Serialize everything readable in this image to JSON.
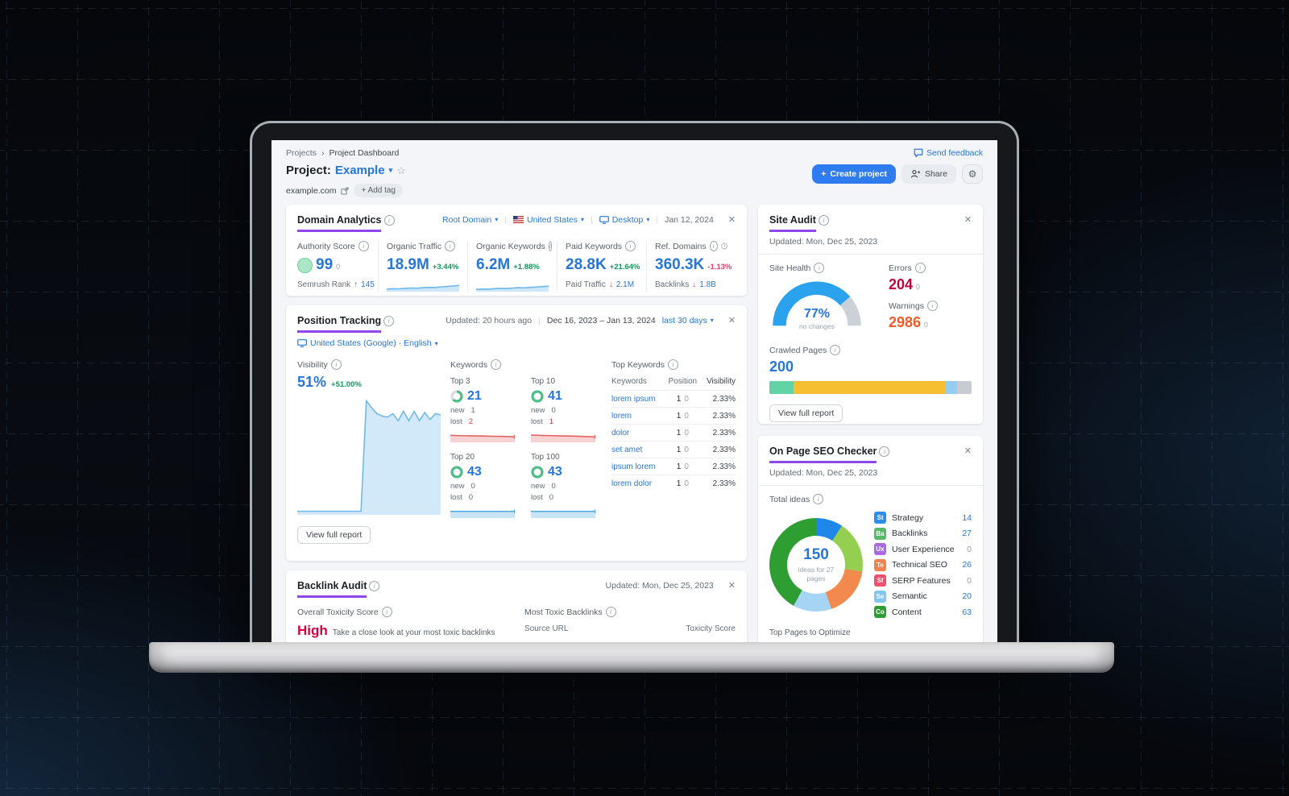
{
  "icons": {
    "plus": "+",
    "chevron_down": "▾",
    "star": "☆",
    "close": "✕",
    "gear": "⚙",
    "external": "↗",
    "breadcrumb_sep": "›",
    "vbar": "|",
    "dot_sep": "·"
  },
  "header": {
    "breadcrumb": [
      "Projects",
      "Project Dashboard"
    ],
    "title_prefix": "Project:",
    "title_value": "Example",
    "domain_link": "example.com",
    "add_tag_label": "+ Add tag",
    "send_feedback": "Send feedback",
    "create_project": "Create project",
    "share": "Share"
  },
  "domain_analytics": {
    "title": "Domain Analytics",
    "scope": "Root Domain",
    "country": "United States",
    "device": "Desktop",
    "date": "Jan 12, 2024",
    "metrics": [
      {
        "label": "Authority Score",
        "value": "99",
        "sub": "0",
        "footer_label": "Semrush Rank",
        "footer_arrow": "↑",
        "footer_arrow_color": "#13985b",
        "footer_value": "145"
      },
      {
        "label": "Organic Traffic",
        "value": "18.9M",
        "delta": "+3.44%",
        "delta_color": "#13985b",
        "spark": {
          "points": [
            22,
            26,
            25,
            29,
            32,
            31,
            35,
            38,
            37,
            42,
            46,
            50,
            55
          ],
          "line": "#6fb6e9",
          "fill": "#cde7f9"
        }
      },
      {
        "label": "Organic Keywords",
        "value": "6.2M",
        "delta": "+1.88%",
        "delta_color": "#13985b",
        "spark": {
          "points": [
            20,
            23,
            22,
            26,
            29,
            28,
            32,
            35,
            34,
            38,
            41,
            45,
            49
          ],
          "line": "#6fb6e9",
          "fill": "#cde7f9"
        }
      },
      {
        "label": "Paid Keywords",
        "value": "28.8K",
        "delta": "+21.64%",
        "delta_color": "#13985b",
        "footer_label": "Paid Traffic",
        "footer_arrow": "↓",
        "footer_arrow_color": "#e0426b",
        "footer_value": "2.1M"
      },
      {
        "label": "Ref. Domains",
        "value": "360.3K",
        "delta": "-1.13%",
        "delta_color": "#e0426b",
        "footer_label": "Backlinks",
        "footer_arrow": "↓",
        "footer_arrow_color": "#e0426b",
        "footer_value": "1.8B"
      }
    ]
  },
  "position_tracking": {
    "title": "Position Tracking",
    "updated": "Updated: 20 hours ago",
    "date_range": "Dec 16, 2023 – Jan 13, 2024",
    "range_label": "last 30 days",
    "locale": "United States (Google) · English",
    "visibility": {
      "label": "Visibility",
      "value": "51%",
      "delta": "+51.00%",
      "delta_color": "#13985b",
      "trend": {
        "points": [
          3,
          3,
          3,
          3,
          3,
          3,
          3,
          3,
          3,
          3,
          3,
          3,
          3,
          97,
          91,
          86,
          84,
          83,
          86,
          80,
          88,
          80,
          88,
          80,
          87,
          81,
          86,
          85
        ],
        "line": "#72b9e9",
        "fill": "#d2e9f9"
      }
    },
    "keywords_label": "Keywords",
    "stats": [
      {
        "label": "Top 3",
        "value": "21",
        "new_label": "new",
        "new": "1",
        "lost_label": "lost",
        "lost": "2",
        "lost_color": "#d6344f",
        "ring": {
          "pct": 63,
          "color": "#4dbd85"
        },
        "spark": {
          "points": [
            58,
            55,
            54,
            52,
            50,
            49,
            46
          ],
          "line": "#e2625f",
          "fill": "#f7d2d2",
          "end_tick": true
        }
      },
      {
        "label": "Top 10",
        "value": "41",
        "new_label": "new",
        "new": "0",
        "lost_label": "lost",
        "lost": "1",
        "lost_color": "#d6344f",
        "ring": {
          "pct": 100,
          "color": "#4dbd85"
        },
        "spark": {
          "points": [
            60,
            57,
            55,
            53,
            51,
            48,
            45
          ],
          "line": "#e2625f",
          "fill": "#f7d2d2",
          "end_tick": true
        }
      },
      {
        "label": "Top 20",
        "value": "43",
        "new_label": "new",
        "new": "0",
        "lost_label": "lost",
        "lost": "0",
        "lost_color": "#636e78",
        "ring": {
          "pct": 100,
          "color": "#4dbd85"
        },
        "spark": {
          "points": [
            55,
            55,
            55,
            55,
            55,
            55,
            55
          ],
          "line": "#53a7e0",
          "fill": "#c8e5f8",
          "end_tick": true
        }
      },
      {
        "label": "Top 100",
        "value": "43",
        "new_label": "new",
        "new": "0",
        "lost_label": "lost",
        "lost": "0",
        "lost_color": "#636e78",
        "ring": {
          "pct": 100,
          "color": "#4dbd85"
        },
        "spark": {
          "points": [
            55,
            55,
            55,
            55,
            55,
            55,
            55
          ],
          "line": "#53a7e0",
          "fill": "#c8e5f8",
          "end_tick": true
        }
      }
    ],
    "top_keywords": {
      "title": "Top Keywords",
      "columns": [
        "Keywords",
        "Position",
        "Visibility"
      ],
      "rows": [
        {
          "keyword": "lorem ipsum",
          "position": "1",
          "change": "0",
          "visibility": "2.33%"
        },
        {
          "keyword": "lorem",
          "position": "1",
          "change": "0",
          "visibility": "2.33%"
        },
        {
          "keyword": "dolor",
          "position": "1",
          "change": "0",
          "visibility": "2.33%"
        },
        {
          "keyword": "set amet",
          "position": "1",
          "change": "0",
          "visibility": "2.33%"
        },
        {
          "keyword": "ipsum lorem",
          "position": "1",
          "change": "0",
          "visibility": "2.33%"
        },
        {
          "keyword": "lorem dolor",
          "position": "1",
          "change": "0",
          "visibility": "2.33%"
        }
      ]
    },
    "view_report": "View full report"
  },
  "backlink_audit": {
    "title": "Backlink Audit",
    "updated": "Updated: Mon, Dec 25, 2023",
    "toxicity_label": "Overall Toxicity Score",
    "toxicity_value": "High",
    "toxicity_note": "Take a close look at your most toxic backlinks",
    "most_toxic_label": "Most Toxic Backlinks",
    "source_col": "Source URL",
    "score_col": "Toxicity Score"
  },
  "site_audit": {
    "title": "Site Audit",
    "updated": "Updated: Mon, Dec 25, 2023",
    "health_label": "Site Health",
    "health_pct": 77,
    "health_value": "77%",
    "health_note": "no changes",
    "errors_label": "Errors",
    "errors_value": "204",
    "errors_sub": "0",
    "warnings_label": "Warnings",
    "warnings_value": "2986",
    "warnings_sub": "0",
    "crawled_label": "Crawled Pages",
    "crawled_value": "200",
    "bar": [
      {
        "pct": 12,
        "color": "#62d3a4"
      },
      {
        "pct": 75,
        "color": "#f7be31"
      },
      {
        "pct": 6,
        "color": "#94cdf4"
      },
      {
        "pct": 7,
        "color": "#c7ccd2"
      }
    ],
    "view_report": "View full report"
  },
  "seo_checker": {
    "title": "On Page SEO Checker",
    "updated": "Updated: Mon, Dec 25, 2023",
    "total_label": "Total ideas",
    "center_value": "150",
    "center_note": "ideas for 27 pages",
    "donut": [
      {
        "label": "Strategy",
        "value": 14,
        "color": "#1f87e8"
      },
      {
        "label": "Backlinks",
        "value": 27,
        "color": "#95cf52"
      },
      {
        "label": "Technical SEO",
        "value": 26,
        "color": "#f28a4d"
      },
      {
        "label": "Semantic",
        "value": 20,
        "color": "#a6d4f5"
      },
      {
        "label": "Content",
        "value": 63,
        "color": "#2f9e32"
      }
    ],
    "legend": [
      {
        "badge": "St",
        "badge_color": "#2e8de9",
        "label": "Strategy",
        "value": "14",
        "value_color": "#2676d9"
      },
      {
        "badge": "Ba",
        "badge_color": "#56b96a",
        "label": "Backlinks",
        "value": "27",
        "value_color": "#2676d9"
      },
      {
        "badge": "Ux",
        "badge_color": "#ab6be0",
        "label": "User Experience",
        "value": "0",
        "value_color": "#9aa4ad"
      },
      {
        "badge": "Te",
        "badge_color": "#f2814d",
        "label": "Technical SEO",
        "value": "26",
        "value_color": "#2676d9"
      },
      {
        "badge": "Sf",
        "badge_color": "#f0506e",
        "label": "SERP Features",
        "value": "0",
        "value_color": "#9aa4ad"
      },
      {
        "badge": "Se",
        "badge_color": "#82c6f0",
        "label": "Semantic",
        "value": "20",
        "value_color": "#2676d9"
      },
      {
        "badge": "Co",
        "badge_color": "#2f9e32",
        "label": "Content",
        "value": "63",
        "value_color": "#2676d9"
      }
    ],
    "top_pages_label": "Top Pages to Optimize"
  }
}
